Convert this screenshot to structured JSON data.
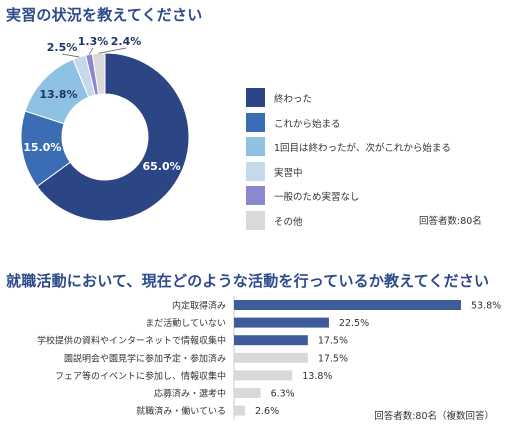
{
  "section1": {
    "title": "実習の状況を教えてください",
    "respondents": "回答者数:80名"
  },
  "section2": {
    "title": "就職活動において、現在どのような活動を行っているか教えてください",
    "respondents": "回答者数:80名（複数回答）"
  },
  "chart_data": [
    {
      "type": "pie",
      "title": "実習の状況を教えてください",
      "categories": [
        "終わった",
        "これから始まる",
        "1回目は終わったが、次がこれから始まる",
        "実習中",
        "一般のため実習なし",
        "その他"
      ],
      "values": [
        65.0,
        15.0,
        13.8,
        2.5,
        1.3,
        2.4
      ],
      "labels": [
        "65.0%",
        "15.0%",
        "13.8%",
        "2.5%",
        "1.3%",
        "2.4%"
      ],
      "colors": [
        "#2b4585",
        "#3a6db4",
        "#8fc2e2",
        "#c6d9ec",
        "#8b88cf",
        "#d9d9d9"
      ],
      "legend": "right"
    },
    {
      "type": "bar",
      "orientation": "horizontal",
      "title": "就職活動において、現在どのような活動を行っているか教えてください",
      "categories": [
        "内定取得済み",
        "まだ活動していない",
        "学校提供の資料やインターネットで情報収集中",
        "園説明会や園見学に参加予定・参加済み",
        "フェア等のイベントに参加し、情報収集中",
        "応募済み・選考中",
        "就職済み・働いている"
      ],
      "values": [
        53.8,
        22.5,
        17.5,
        17.5,
        13.8,
        6.3,
        2.6
      ],
      "labels": [
        "53.8%",
        "22.5%",
        "17.5%",
        "17.5%",
        "13.8%",
        "6.3%",
        "2.6%"
      ],
      "colors": [
        "#3e5b9a",
        "#3e5b9a",
        "#3e5b9a",
        "#d9d9d9",
        "#d9d9d9",
        "#d9d9d9",
        "#d9d9d9"
      ],
      "xlim": [
        0,
        55
      ]
    }
  ]
}
